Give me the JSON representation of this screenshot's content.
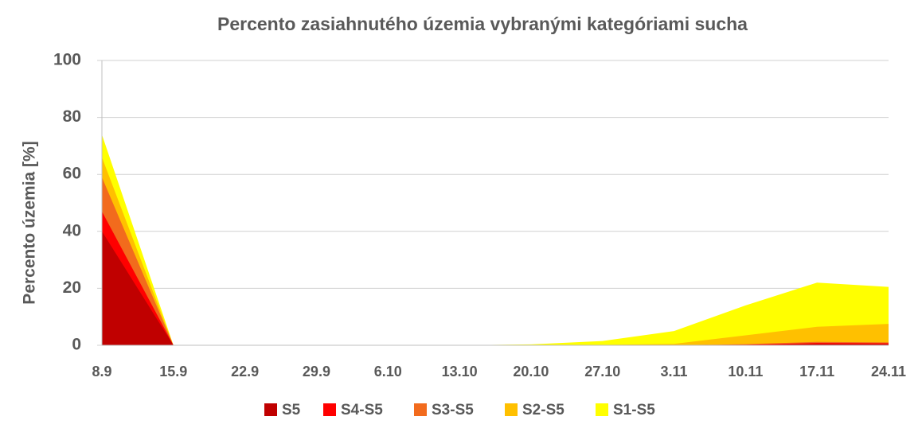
{
  "chart_data": {
    "type": "area",
    "title": "Percento zasiahnutého územia vybranými kategóriami sucha",
    "y_label": "Percento územia  [%]",
    "categories": [
      "8.9",
      "15.9",
      "22.9",
      "29.9",
      "6.10",
      "13.10",
      "20.10",
      "27.10",
      "3.11",
      "10.11",
      "17.11",
      "24.11"
    ],
    "series": [
      {
        "name": "S5",
        "color": "#c00000",
        "values": [
          40,
          0,
          0,
          0,
          0,
          0,
          0,
          0,
          0,
          0,
          0.5,
          0.4
        ]
      },
      {
        "name": "S4-S5",
        "color": "#ff0000",
        "values": [
          47,
          0,
          0,
          0,
          0,
          0,
          0,
          0,
          0,
          0.2,
          0.8,
          0.7
        ]
      },
      {
        "name": "S3-S5",
        "color": "#f26b1d",
        "values": [
          59,
          0,
          0,
          0,
          0,
          0,
          0,
          0,
          0,
          0.4,
          1.2,
          1
        ]
      },
      {
        "name": "S2-S5",
        "color": "#ffc000",
        "values": [
          66,
          0,
          0,
          0,
          0,
          0,
          0,
          0.1,
          0.5,
          3.5,
          6.5,
          7.5
        ]
      },
      {
        "name": "S1-S5",
        "color": "#ffff00",
        "values": [
          74,
          0,
          0,
          0,
          0,
          0,
          0.3,
          1.5,
          5,
          14,
          22,
          20.5
        ]
      }
    ],
    "ylim": [
      0,
      100
    ],
    "yticks": [
      0,
      20,
      40,
      60,
      80,
      100
    ],
    "grid": true,
    "legend": "bottom"
  }
}
